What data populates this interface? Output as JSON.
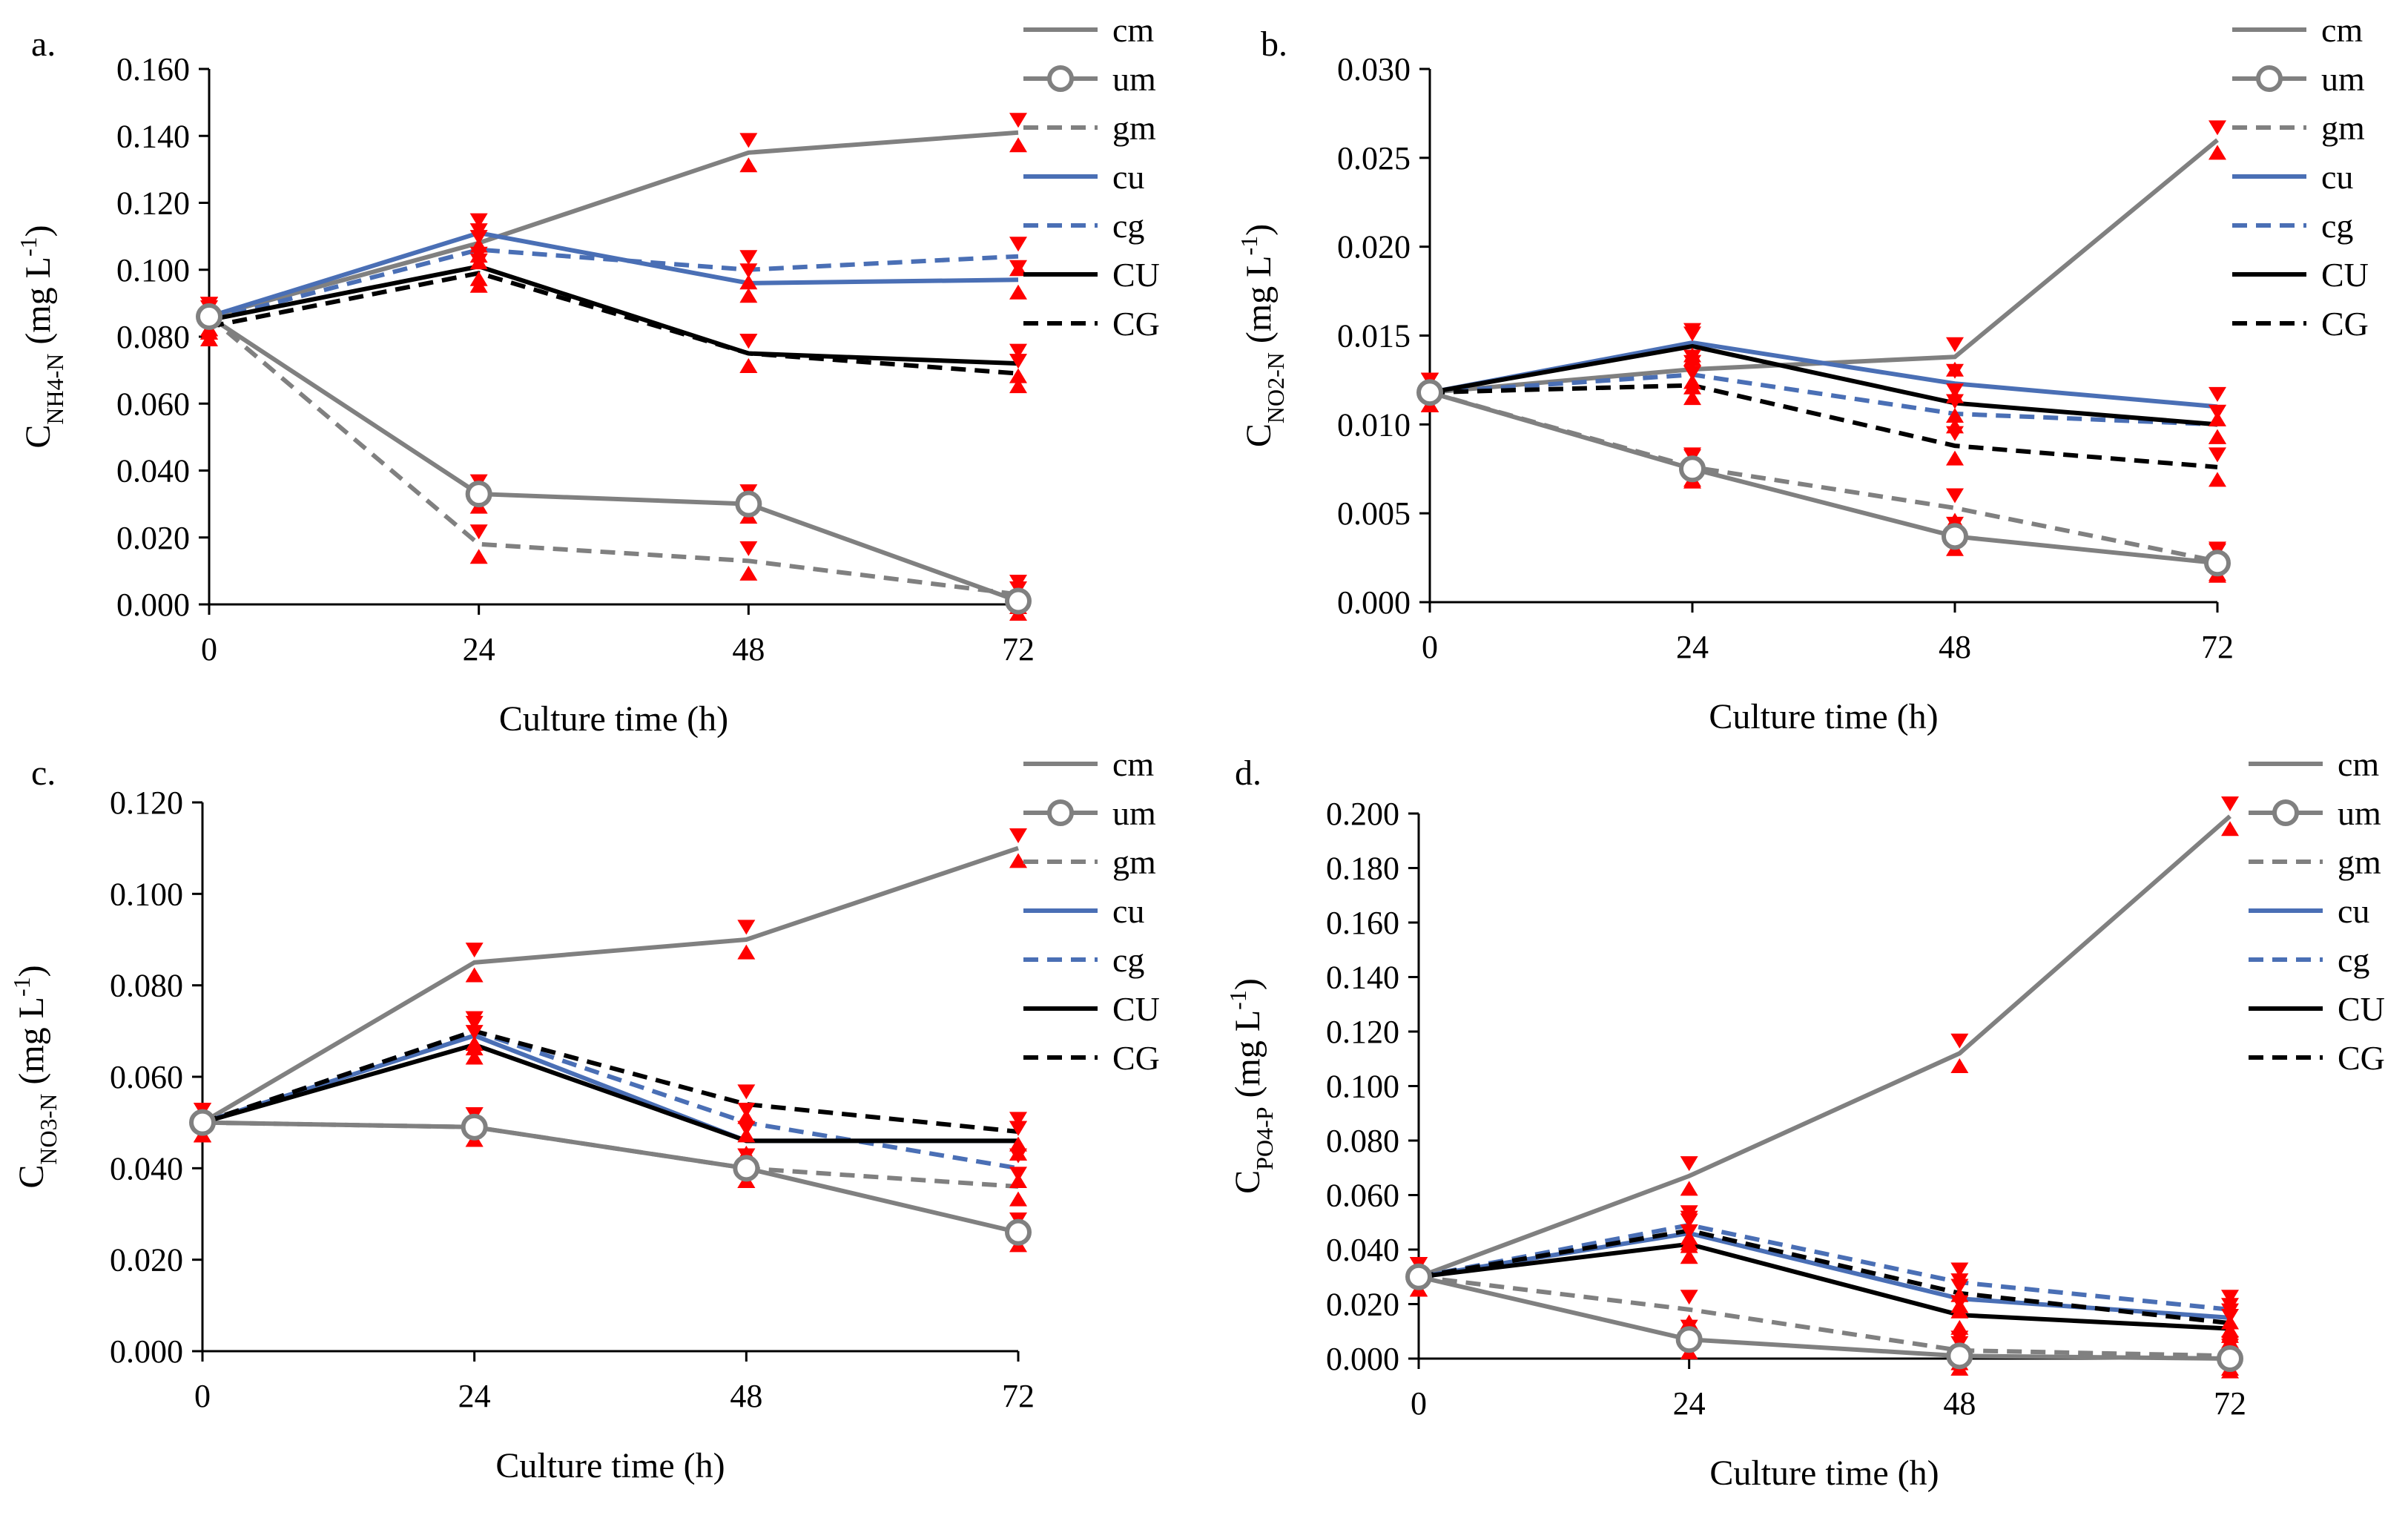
{
  "colors": {
    "gray": "#808080",
    "blue": "#4a6fb5",
    "black": "#000000",
    "error": "#ff0000"
  },
  "series_styles": [
    {
      "name": "cm",
      "color": "gray",
      "dash": false,
      "marker": false
    },
    {
      "name": "um",
      "color": "gray",
      "dash": false,
      "marker": true
    },
    {
      "name": "gm",
      "color": "gray",
      "dash": true,
      "marker": false
    },
    {
      "name": "cu",
      "color": "blue",
      "dash": false,
      "marker": false
    },
    {
      "name": "cg",
      "color": "blue",
      "dash": true,
      "marker": false
    },
    {
      "name": "CU",
      "color": "black",
      "dash": false,
      "marker": false
    },
    {
      "name": "CG",
      "color": "black",
      "dash": true,
      "marker": false
    }
  ],
  "chart_data": [
    {
      "type": "line",
      "panel_label": "a.",
      "xlabel": "Culture time (h)",
      "ylabel": {
        "main": "C",
        "sub": "NH4-N",
        "unit": " (mg L",
        "sup": "-1",
        "close": ")"
      },
      "x": [
        0,
        24,
        48,
        72
      ],
      "x_ticks": [
        "0",
        "24",
        "48",
        "72"
      ],
      "ylim": [
        0,
        0.16
      ],
      "y_ticks": [
        "0.000",
        "0.020",
        "0.040",
        "0.060",
        "0.080",
        "0.100",
        "0.120",
        "0.140",
        "0.160"
      ],
      "series": [
        {
          "name": "cm",
          "values": [
            0.086,
            0.108,
            0.135,
            0.141
          ]
        },
        {
          "name": "um",
          "values": [
            0.086,
            0.033,
            0.03,
            0.001
          ]
        },
        {
          "name": "gm",
          "values": [
            0.086,
            0.018,
            0.013,
            0.003
          ]
        },
        {
          "name": "cu",
          "values": [
            0.086,
            0.111,
            0.096,
            0.097
          ]
        },
        {
          "name": "cg",
          "values": [
            0.085,
            0.106,
            0.1,
            0.104
          ]
        },
        {
          "name": "CU",
          "values": [
            0.085,
            0.101,
            0.075,
            0.072
          ]
        },
        {
          "name": "CG",
          "values": [
            0.083,
            0.099,
            0.075,
            0.069
          ]
        }
      ]
    },
    {
      "type": "line",
      "panel_label": "b.",
      "xlabel": "Culture time (h)",
      "ylabel": {
        "main": "C",
        "sub": "NO2-N",
        "unit": " (mg L",
        "sup": "-1",
        "close": ")"
      },
      "x": [
        0,
        24,
        48,
        72
      ],
      "x_ticks": [
        "0",
        "24",
        "48",
        "72"
      ],
      "ylim": [
        0,
        0.03
      ],
      "y_ticks": [
        "0.000",
        "0.005",
        "0.010",
        "0.015",
        "0.020",
        "0.025",
        "0.030"
      ],
      "series": [
        {
          "name": "cm",
          "values": [
            0.0118,
            0.0131,
            0.0138,
            0.026
          ]
        },
        {
          "name": "um",
          "values": [
            0.0118,
            0.0075,
            0.0037,
            0.0022
          ]
        },
        {
          "name": "gm",
          "values": [
            0.0118,
            0.0076,
            0.0053,
            0.0023
          ]
        },
        {
          "name": "cu",
          "values": [
            0.0118,
            0.0146,
            0.0123,
            0.011
          ]
        },
        {
          "name": "cg",
          "values": [
            0.0118,
            0.0128,
            0.0106,
            0.01
          ]
        },
        {
          "name": "CU",
          "values": [
            0.0118,
            0.0144,
            0.0112,
            0.01
          ]
        },
        {
          "name": "CG",
          "values": [
            0.0118,
            0.0122,
            0.0088,
            0.0076
          ]
        }
      ]
    },
    {
      "type": "line",
      "panel_label": "c.",
      "xlabel": "Culture time (h)",
      "ylabel": {
        "main": "C",
        "sub": "NO3-N",
        "unit": " (mg L",
        "sup": "-1",
        "close": ")"
      },
      "x": [
        0,
        24,
        48,
        72
      ],
      "x_ticks": [
        "0",
        "24",
        "48",
        "72"
      ],
      "ylim": [
        0,
        0.12
      ],
      "y_ticks": [
        "0.000",
        "0.020",
        "0.040",
        "0.060",
        "0.080",
        "0.100",
        "0.120"
      ],
      "series": [
        {
          "name": "cm",
          "values": [
            0.05,
            0.085,
            0.09,
            0.11
          ]
        },
        {
          "name": "um",
          "values": [
            0.05,
            0.049,
            0.04,
            0.026
          ]
        },
        {
          "name": "gm",
          "values": [
            0.05,
            0.049,
            0.04,
            0.036
          ]
        },
        {
          "name": "cu",
          "values": [
            0.05,
            0.069,
            0.046,
            0.046
          ]
        },
        {
          "name": "cg",
          "values": [
            0.05,
            0.07,
            0.05,
            0.04
          ]
        },
        {
          "name": "CU",
          "values": [
            0.05,
            0.067,
            0.046,
            0.046
          ]
        },
        {
          "name": "CG",
          "values": [
            0.05,
            0.07,
            0.054,
            0.048
          ]
        }
      ]
    },
    {
      "type": "line",
      "panel_label": "d.",
      "xlabel": "Culture time (h)",
      "ylabel": {
        "main": "C",
        "sub": "PO4-P",
        "unit": " (mg L",
        "sup": "-1",
        "close": ")"
      },
      "x": [
        0,
        24,
        48,
        72
      ],
      "x_ticks": [
        "0",
        "24",
        "48",
        "72"
      ],
      "ylim": [
        0,
        0.2
      ],
      "y_ticks": [
        "0.000",
        "0.020",
        "0.040",
        "0.060",
        "0.080",
        "0.100",
        "0.120",
        "0.140",
        "0.160",
        "0.180",
        "0.200"
      ],
      "series": [
        {
          "name": "cm",
          "values": [
            0.03,
            0.067,
            0.112,
            0.199
          ]
        },
        {
          "name": "um",
          "values": [
            0.03,
            0.007,
            0.001,
            0.0
          ]
        },
        {
          "name": "gm",
          "values": [
            0.03,
            0.018,
            0.003,
            0.001
          ]
        },
        {
          "name": "cu",
          "values": [
            0.03,
            0.046,
            0.022,
            0.015
          ]
        },
        {
          "name": "cg",
          "values": [
            0.03,
            0.049,
            0.028,
            0.018
          ]
        },
        {
          "name": "CU",
          "values": [
            0.03,
            0.042,
            0.016,
            0.011
          ]
        },
        {
          "name": "CG",
          "values": [
            0.03,
            0.047,
            0.024,
            0.013
          ]
        }
      ]
    }
  ]
}
